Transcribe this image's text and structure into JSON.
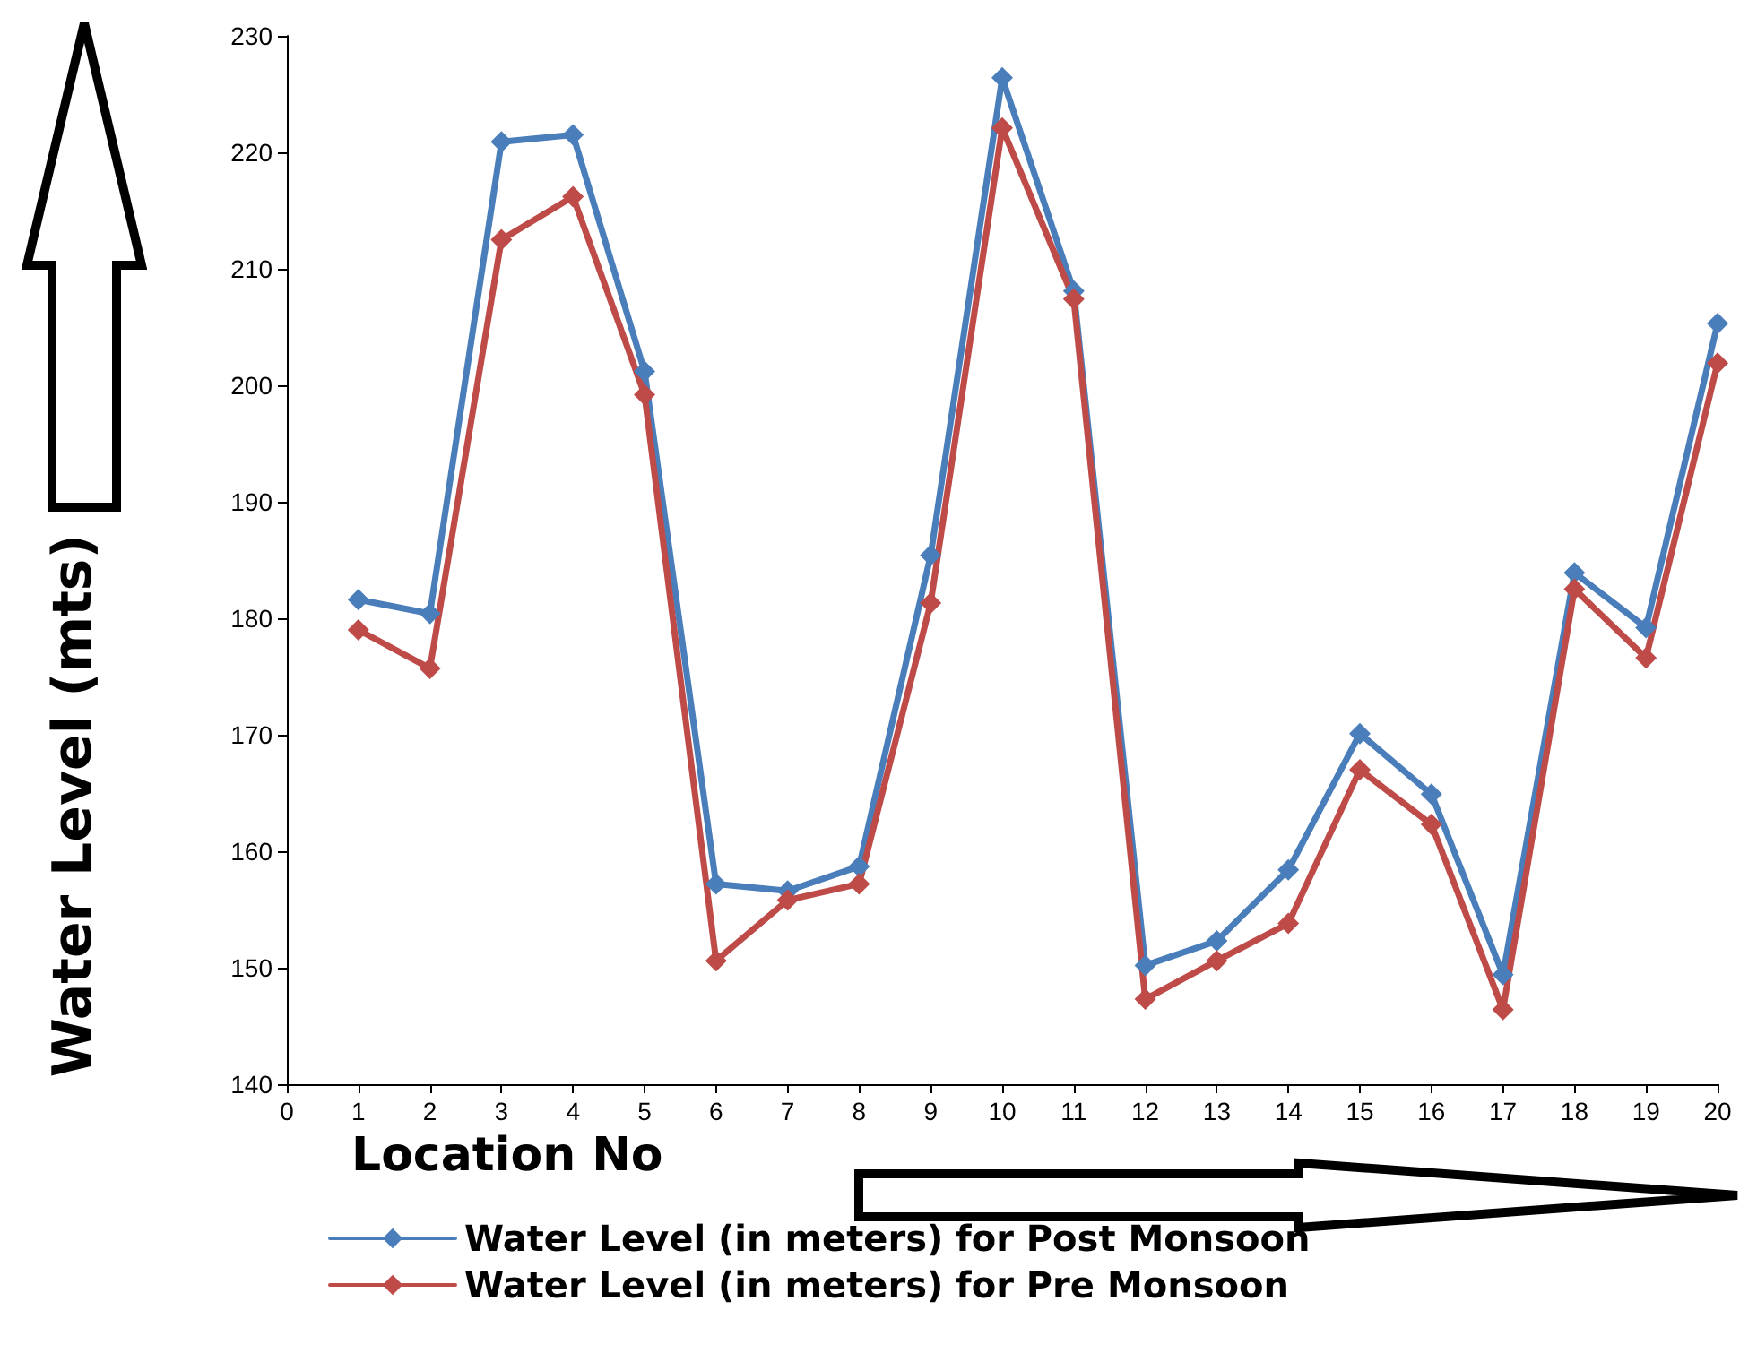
{
  "chart_data": {
    "type": "line",
    "xlabel": "Location No",
    "ylabel": "Water Level (mts)",
    "x": [
      1,
      2,
      3,
      4,
      5,
      6,
      7,
      8,
      9,
      10,
      11,
      12,
      13,
      14,
      15,
      16,
      17,
      18,
      19,
      20
    ],
    "xlim": [
      0,
      20
    ],
    "xticks": [
      0,
      1,
      2,
      3,
      4,
      5,
      6,
      7,
      8,
      9,
      10,
      11,
      12,
      13,
      14,
      15,
      16,
      17,
      18,
      19,
      20
    ],
    "ylim": [
      140,
      230
    ],
    "yticks": [
      140,
      150,
      160,
      170,
      180,
      190,
      200,
      210,
      220,
      230
    ],
    "series": [
      {
        "name": "Water Level (in meters) for Post Monsoon",
        "color": "#4a7ebb",
        "values": [
          181.6,
          180.4,
          220.9,
          221.5,
          201.2,
          157.2,
          156.6,
          158.7,
          185.4,
          226.4,
          208.1,
          150.2,
          152.3,
          158.4,
          170.1,
          164.9,
          149.4,
          183.9,
          179.2,
          205.3
        ]
      },
      {
        "name": "Water Level (in meters) for Pre Monsoon",
        "color": "#be4b48",
        "values": [
          179,
          175.7,
          212.5,
          216.2,
          199.2,
          150.6,
          155.8,
          157.2,
          181.3,
          222.1,
          207.4,
          147.3,
          150.6,
          153.8,
          167,
          162.3,
          146.4,
          182.5,
          176.6,
          201.9
        ]
      }
    ],
    "grid": false,
    "legend": "bottom",
    "marker": "diamond",
    "line_style": "solid"
  }
}
